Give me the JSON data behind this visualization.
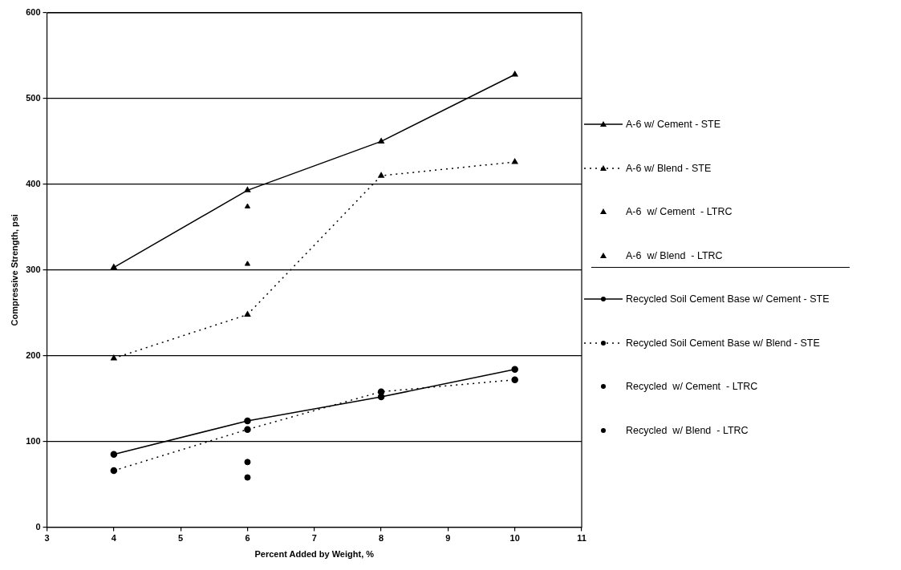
{
  "chart_data": {
    "type": "line",
    "xlabel": "Percent Added by Weight, %",
    "ylabel": "Compressive Strength, psi",
    "x": [
      4,
      6,
      8,
      10
    ],
    "xlim": [
      3,
      11
    ],
    "xticks": [
      3,
      4,
      5,
      6,
      7,
      8,
      9,
      10,
      11
    ],
    "ylim": [
      0,
      600
    ],
    "yticks": [
      0,
      100,
      200,
      300,
      400,
      500,
      600
    ],
    "grid": "y",
    "legend": "right",
    "series": [
      {
        "name": "A-6 w/ Cement - STE",
        "type": "line",
        "color": "#000000",
        "marker": "triangle",
        "line_style": "solid",
        "values": [
          303,
          393,
          450,
          528
        ]
      },
      {
        "name": "A-6 w/ Blend - STE",
        "type": "line",
        "color": "#000000",
        "marker": "triangle",
        "line_style": "dotted",
        "values": [
          197,
          248,
          410,
          426
        ]
      },
      {
        "name": "A-6  w/ Cement  - LTRC",
        "type": "scatter",
        "color": "#000000",
        "marker": "triangle",
        "values": [
          null,
          374,
          null,
          null
        ]
      },
      {
        "name": "A-6  w/ Blend  - LTRC",
        "type": "scatter",
        "color": "#000000",
        "marker": "triangle",
        "values": [
          null,
          307,
          null,
          null
        ]
      },
      {
        "name": "Recycled Soil Cement Base w/ Cement - STE",
        "type": "line",
        "color": "#000000",
        "marker": "circle",
        "line_style": "solid",
        "values": [
          85,
          124,
          152,
          184
        ]
      },
      {
        "name": "Recycled Soil Cement Base w/ Blend - STE",
        "type": "line",
        "color": "#000000",
        "marker": "circle",
        "line_style": "dotted",
        "values": [
          66,
          114,
          158,
          172
        ]
      },
      {
        "name": "Recycled  w/ Cement  - LTRC",
        "type": "scatter",
        "color": "#000000",
        "marker": "circle",
        "values": [
          null,
          76,
          null,
          null
        ]
      },
      {
        "name": "Recycled  w/ Blend  - LTRC",
        "type": "scatter",
        "color": "#000000",
        "marker": "circle",
        "values": [
          null,
          58,
          null,
          null
        ]
      }
    ]
  }
}
